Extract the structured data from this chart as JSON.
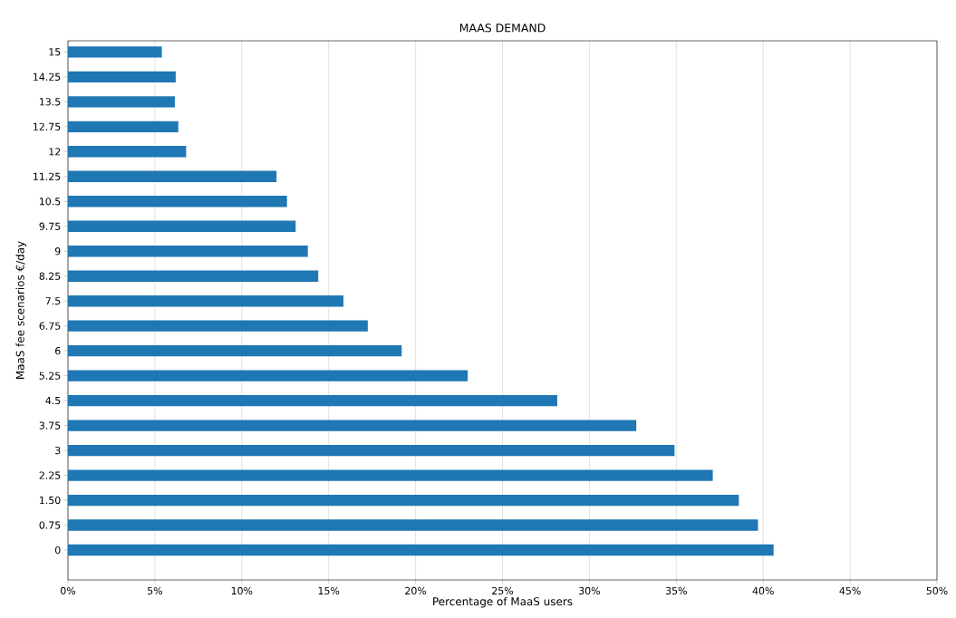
{
  "chart_data": {
    "type": "bar",
    "orientation": "horizontal",
    "title": "MAAS DEMAND",
    "xlabel": "Percentage of MaaS users",
    "ylabel": "MaaS fee scenarios €/day",
    "categories": [
      "15",
      "14.25",
      "13.5",
      "12.75",
      "12",
      "11.25",
      "10.5",
      "9.75",
      "9",
      "8.25",
      "7.5",
      "6.75",
      "6",
      "5.25",
      "4.5",
      "3.75",
      "3",
      "2.25",
      "1.50",
      "0.75",
      "0"
    ],
    "values": [
      5.4,
      6.2,
      6.15,
      6.35,
      6.8,
      12.0,
      12.6,
      13.1,
      13.8,
      14.4,
      15.85,
      17.25,
      19.2,
      23.0,
      28.15,
      32.7,
      34.9,
      37.1,
      38.6,
      39.7,
      40.6
    ],
    "color": "#1f77b4",
    "xlim": [
      0,
      50
    ],
    "xticks": [
      {
        "value": 0,
        "label": "0%"
      },
      {
        "value": 5,
        "label": "5%"
      },
      {
        "value": 10,
        "label": "10%"
      },
      {
        "value": 15,
        "label": "15%"
      },
      {
        "value": 20,
        "label": "20%"
      },
      {
        "value": 25,
        "label": "25%"
      },
      {
        "value": 30,
        "label": "30%"
      },
      {
        "value": 35,
        "label": "35%"
      },
      {
        "value": 40,
        "label": "40%"
      },
      {
        "value": 45,
        "label": "45%"
      },
      {
        "value": 50,
        "label": "50%"
      }
    ],
    "grid": "x"
  }
}
